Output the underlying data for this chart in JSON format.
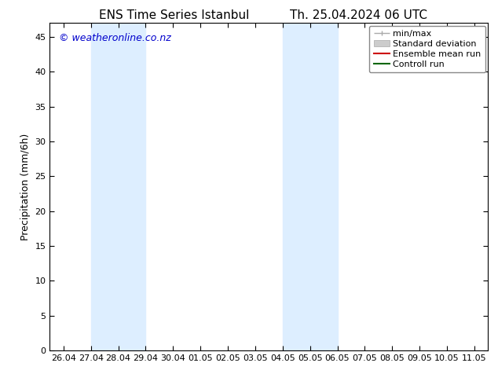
{
  "title_left": "ENS Time Series Istanbul",
  "title_right": "Th. 25.04.2024 06 UTC",
  "ylabel": "Precipitation (mm/6h)",
  "watermark": "© weatheronline.co.nz",
  "watermark_color": "#0000cc",
  "background_color": "#ffffff",
  "plot_bg_color": "#ffffff",
  "ylim": [
    0,
    47
  ],
  "yticks": [
    0,
    5,
    10,
    15,
    20,
    25,
    30,
    35,
    40,
    45
  ],
  "xtick_labels": [
    "26.04",
    "27.04",
    "28.04",
    "29.04",
    "30.04",
    "01.05",
    "02.05",
    "03.05",
    "04.05",
    "05.05",
    "06.05",
    "07.05",
    "08.05",
    "09.05",
    "10.05",
    "11.05"
  ],
  "xtick_positions": [
    0,
    1,
    2,
    3,
    4,
    5,
    6,
    7,
    8,
    9,
    10,
    11,
    12,
    13,
    14,
    15
  ],
  "shaded_regions": [
    {
      "xstart": 1,
      "xend": 3,
      "color": "#ddeeff"
    },
    {
      "xstart": 8,
      "xend": 10,
      "color": "#ddeeff"
    }
  ],
  "title_fontsize": 11,
  "axis_label_fontsize": 9,
  "tick_fontsize": 8,
  "watermark_fontsize": 9,
  "legend_fontsize": 8
}
